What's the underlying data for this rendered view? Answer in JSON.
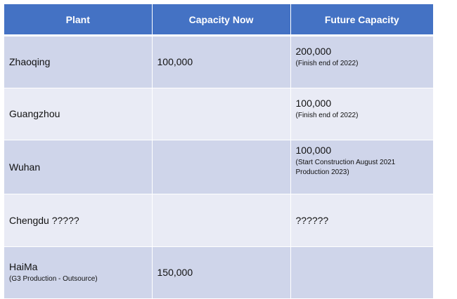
{
  "table": {
    "headers": [
      "Plant",
      "Capacity Now",
      "Future Capacity"
    ],
    "rows": [
      {
        "plant": "Zhaoqing",
        "plant_note": "",
        "capacity_now": "100,000",
        "future_value": "200,000",
        "future_note": "(Finish end of 2022)"
      },
      {
        "plant": "Guangzhou",
        "plant_note": "",
        "capacity_now": "",
        "future_value": "100,000",
        "future_note": "(Finish end of 2022)"
      },
      {
        "plant": "Wuhan",
        "plant_note": "",
        "capacity_now": "",
        "future_value": "100,000",
        "future_note_line1": "(Start Construction August 2021",
        "future_note_line2": "Production 2023)"
      },
      {
        "plant": "Chengdu ?????",
        "plant_note": "",
        "capacity_now": "",
        "future_value": "??????",
        "future_note": ""
      },
      {
        "plant": "HaiMa",
        "plant_note": "(G3 Production - Outsource)",
        "capacity_now": "150,000",
        "future_value": "",
        "future_note": ""
      }
    ]
  },
  "colors": {
    "header_bg": "#4472c4",
    "row_dark": "#cfd5ea",
    "row_light": "#e9ebf5"
  }
}
